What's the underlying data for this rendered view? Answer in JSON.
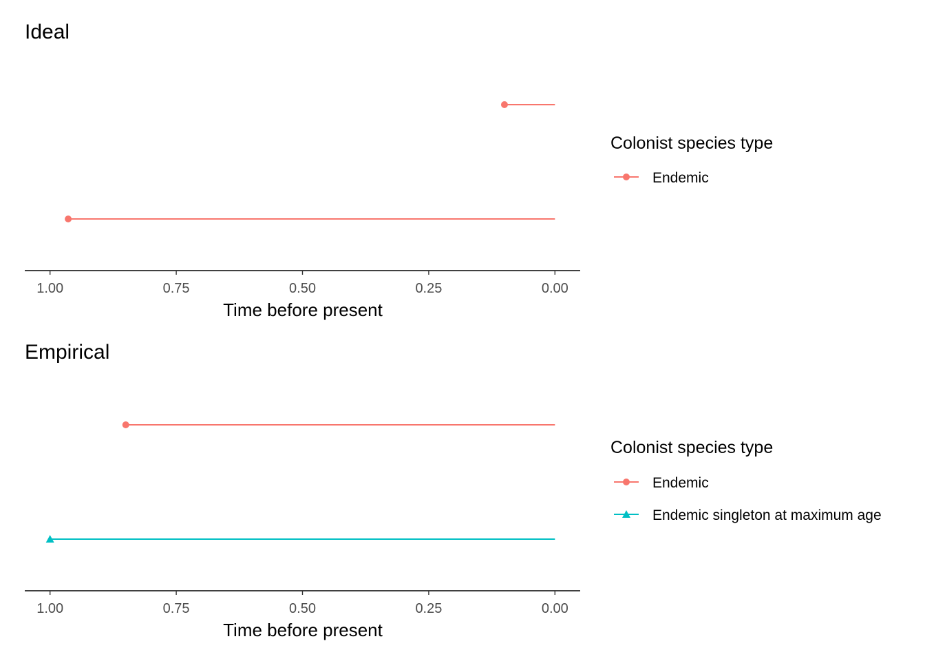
{
  "chart_data": [
    {
      "type": "line",
      "title": "Ideal",
      "xlabel": "Time before present",
      "ylabel": "",
      "xlim": [
        1.05,
        -0.05
      ],
      "x_reversed": true,
      "x_ticks": [
        "1.00",
        "0.75",
        "0.50",
        "0.25",
        "0.00"
      ],
      "legend": {
        "title": "Colonist species type",
        "position": "right",
        "entries": [
          {
            "label": "Endemic",
            "color": "#F8766D",
            "shape": "circle"
          }
        ]
      },
      "segments": [
        {
          "type": "Endemic",
          "start": 0.1,
          "end": 0.0,
          "row": 1
        },
        {
          "type": "Endemic",
          "start": 0.964,
          "end": 0.0,
          "row": 2
        }
      ]
    },
    {
      "type": "line",
      "title": "Empirical",
      "xlabel": "Time before present",
      "ylabel": "",
      "xlim": [
        1.05,
        -0.05
      ],
      "x_reversed": true,
      "x_ticks": [
        "1.00",
        "0.75",
        "0.50",
        "0.25",
        "0.00"
      ],
      "legend": {
        "title": "Colonist species type",
        "position": "right",
        "entries": [
          {
            "label": "Endemic",
            "color": "#F8766D",
            "shape": "circle"
          },
          {
            "label": "Endemic singleton at maximum age",
            "color": "#00BFC4",
            "shape": "triangle"
          }
        ]
      },
      "segments": [
        {
          "type": "Endemic",
          "start": 0.85,
          "end": 0.0,
          "row": 1
        },
        {
          "type": "Endemic singleton at maximum age",
          "start": 1.0,
          "end": 0.0,
          "row": 2
        }
      ]
    }
  ]
}
